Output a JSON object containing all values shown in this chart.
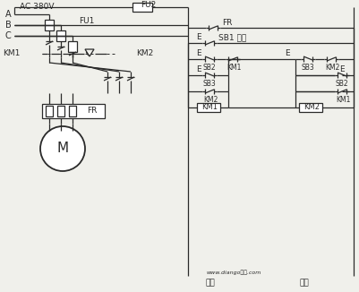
{
  "bg_color": "#f0f0eb",
  "lc": "#2a2a2a",
  "lw": 0.9,
  "title_label": "AC 380V",
  "fu2_label": "FU2",
  "fu1_label": "FU1",
  "km1_label": "KM1",
  "km2_label": "KM2",
  "fr_label": "FR",
  "motor_label": "M",
  "sb1_label": "SB1",
  "sb1_sub": "停车",
  "sb2_label": "SB2",
  "sb3_label": "SB3",
  "coil_km1": "KM1",
  "coil_km2": "KM2",
  "bottom_left": "正转",
  "bottom_right": "反转",
  "watermark": "www.diango电气.com",
  "phase_a": "A",
  "phase_b": "B",
  "phase_c": "C"
}
